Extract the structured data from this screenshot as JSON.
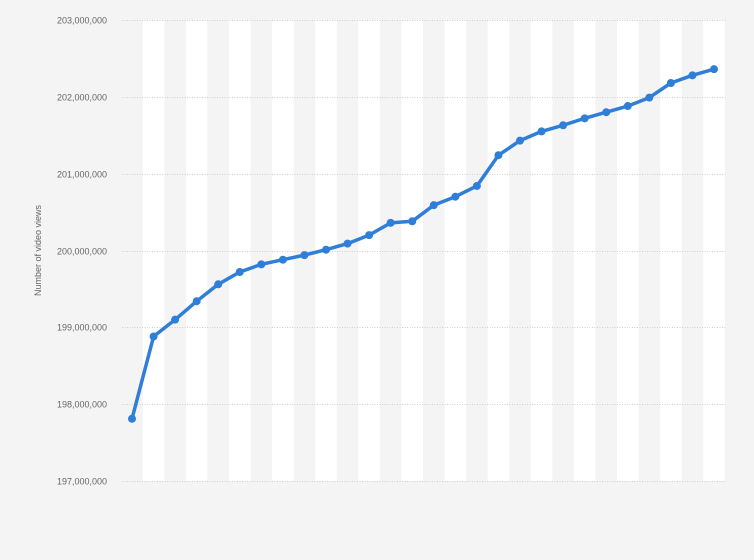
{
  "chart_data": {
    "type": "line",
    "title": "",
    "xlabel": "",
    "ylabel": "Number of video views",
    "ylim": [
      197000000,
      203000000
    ],
    "yticks": [
      {
        "value": 197000000,
        "label": "197,000,000"
      },
      {
        "value": 198000000,
        "label": "198,000,000"
      },
      {
        "value": 199000000,
        "label": "199,000,000"
      },
      {
        "value": 200000000,
        "label": "200,000,000"
      },
      {
        "value": 201000000,
        "label": "201,000,000"
      },
      {
        "value": 202000000,
        "label": "202,000,000"
      },
      {
        "value": 203000000,
        "label": "203,000,000"
      }
    ],
    "grid": true,
    "legend": "none",
    "colors": {
      "series": "#2f7ed8",
      "background": "#f4f4f4",
      "band": "#ffffff"
    },
    "series": [
      {
        "values": [
          197810000,
          198880000,
          199100000,
          199340000,
          199560000,
          199720000,
          199820000,
          199880000,
          199940000,
          200010000,
          200090000,
          200200000,
          200360000,
          200380000,
          200590000,
          200700000,
          200840000,
          201240000,
          201430000,
          201550000,
          201630000,
          201720000,
          201800000,
          201880000,
          201990000,
          202180000,
          202280000,
          202360000
        ]
      }
    ]
  }
}
